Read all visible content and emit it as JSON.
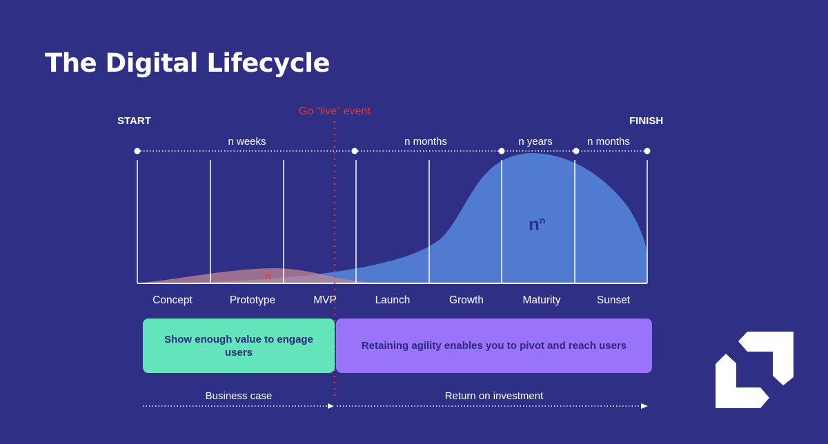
{
  "title": "The Digital Lifecycle",
  "start_label": "START",
  "finish_label": "FINISH",
  "go_live_label": "Go “live” event",
  "durations": [
    "n weeks",
    "n months",
    "n years",
    "n months"
  ],
  "stages": [
    "Concept",
    "Prototype",
    "MVP",
    "Launch",
    "Growth",
    "Maturity",
    "Sunset"
  ],
  "curve_labels": {
    "small": "n",
    "large_base": "n",
    "large_exp": "n"
  },
  "boxes": [
    {
      "text": "Show enough value to engage users",
      "color": "#64e4bb"
    },
    {
      "text": "Retaining agility enables you to pivot and reach users",
      "color": "#9a73fb"
    }
  ],
  "bottom": [
    "Business case",
    "Return on investment"
  ],
  "colors": {
    "background": "#2e2f85",
    "go_live": "#e8362f",
    "growth_curve": "#5280d4",
    "mvp_curve": "#b07a8a"
  },
  "logo": {
    "icon": "brand-logo-icon"
  }
}
